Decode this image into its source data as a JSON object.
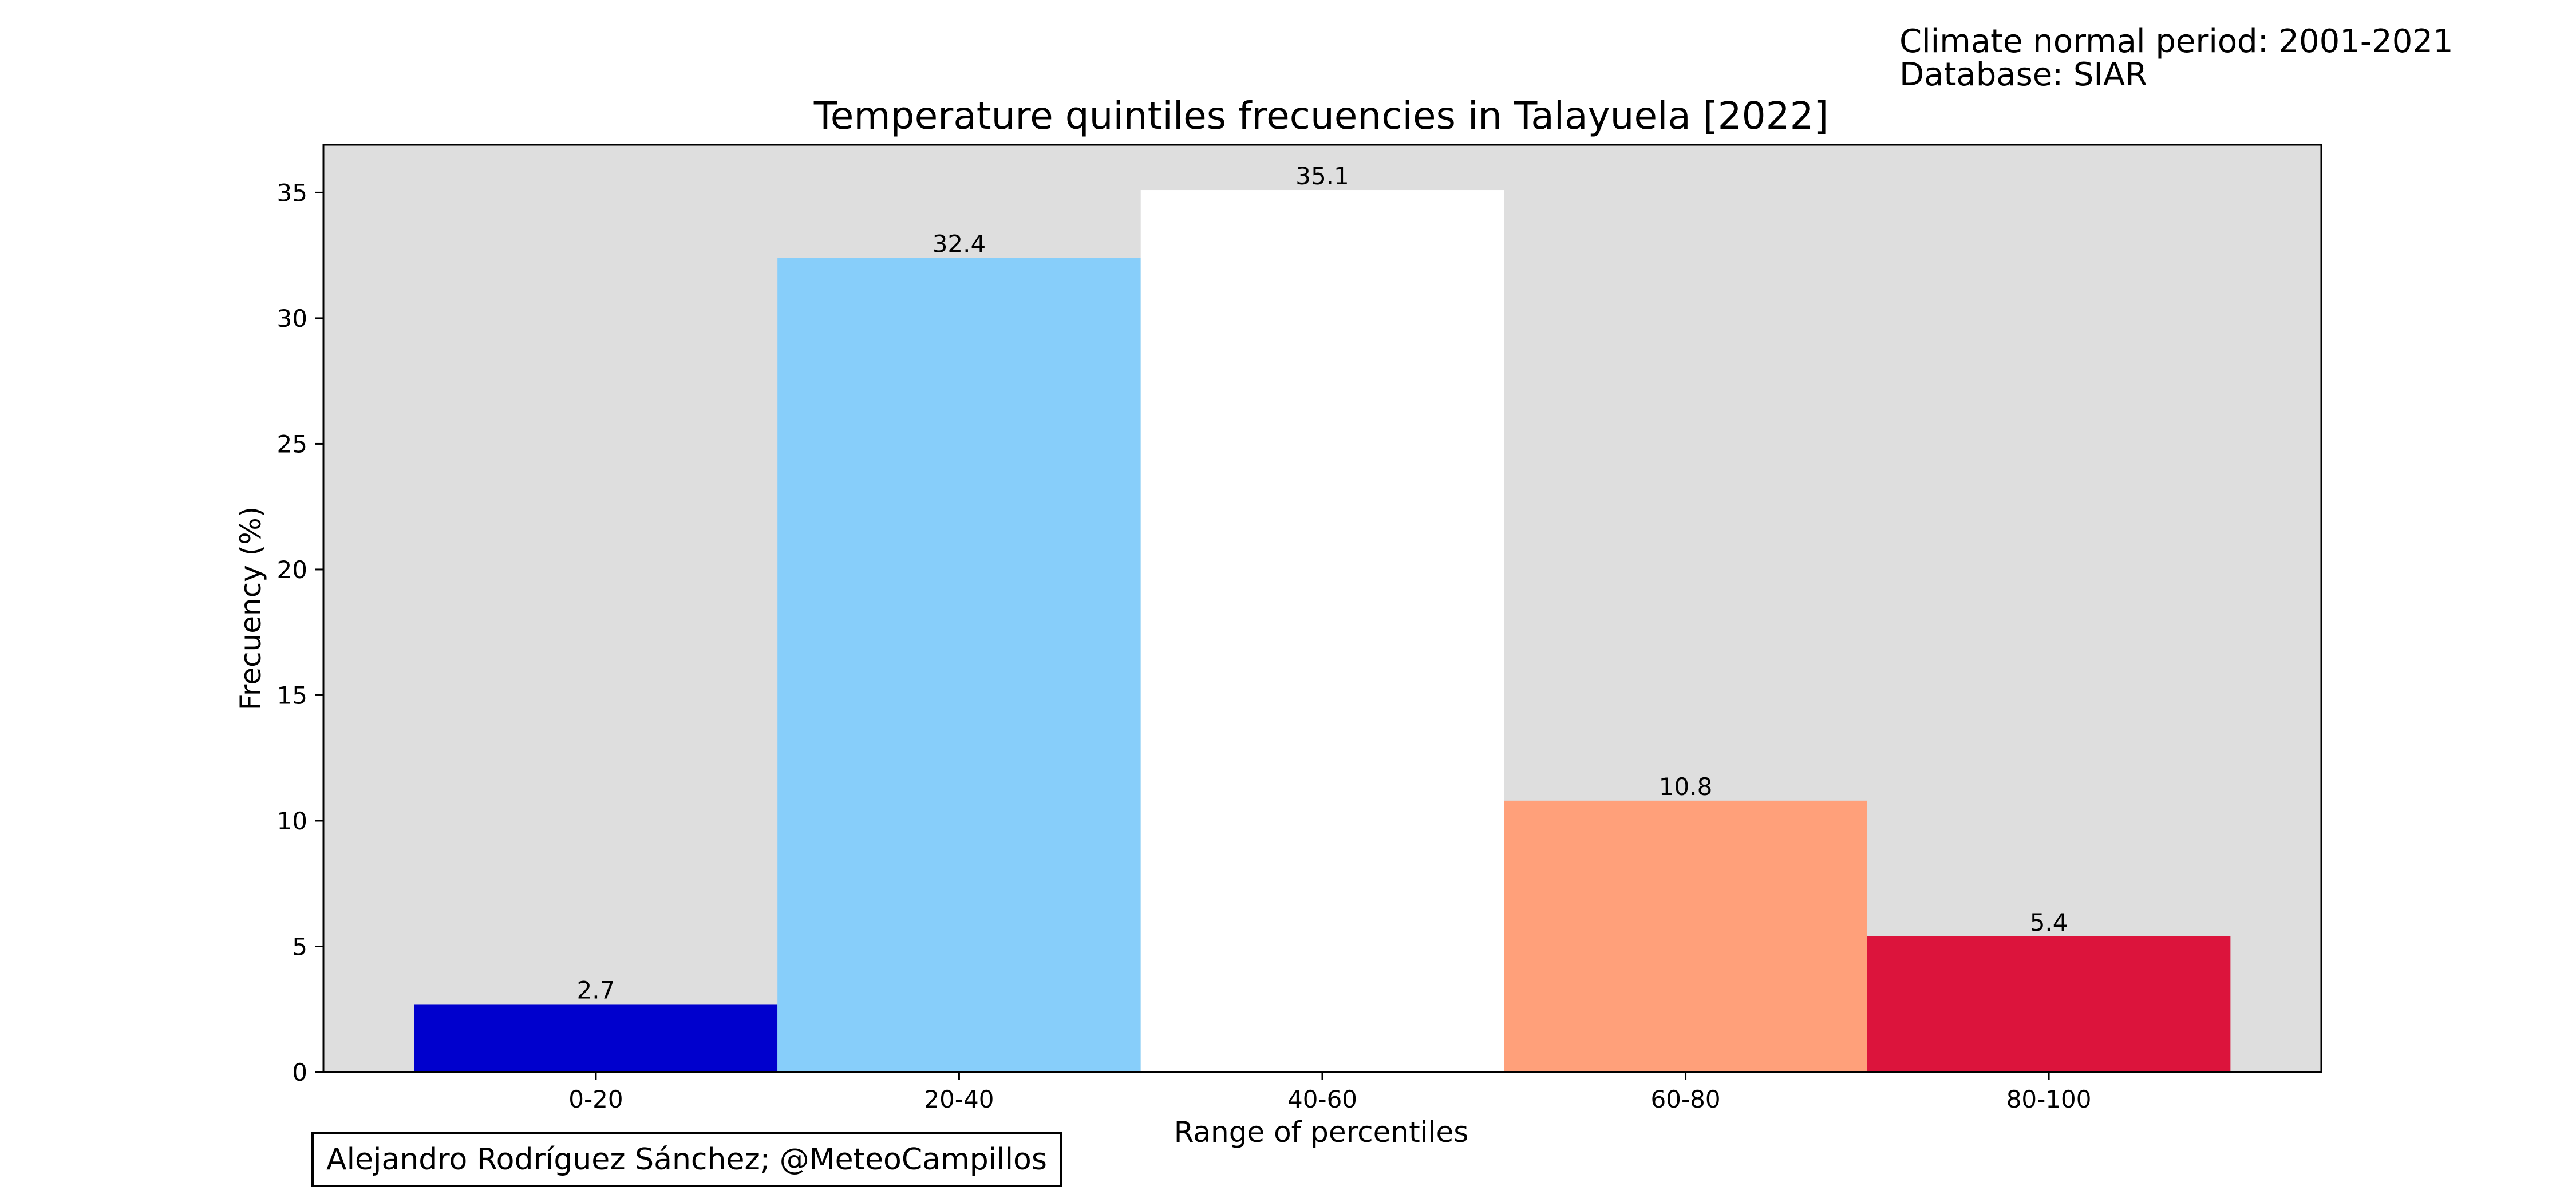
{
  "info": {
    "period_line": "Climate normal period: 2001-2021",
    "database_line": "Database: SIAR"
  },
  "credit": "Alejandro Rodríguez Sánchez; @MeteoCampillos",
  "chart_data": {
    "type": "bar",
    "title": "Temperature quintiles frecuencies in Talayuela [2022]",
    "xlabel": "Range of percentiles",
    "ylabel": "Frecuency (%)",
    "categories": [
      "0-20",
      "20-40",
      "40-60",
      "60-80",
      "80-100"
    ],
    "values": [
      2.7,
      32.4,
      35.1,
      10.8,
      5.4
    ],
    "value_labels": [
      "2.7",
      "32.4",
      "35.1",
      "10.8",
      "5.4"
    ],
    "bar_colors": [
      "#0000CD",
      "#87CEFA",
      "#FFFFFF",
      "#FFA07A",
      "#DC143C"
    ],
    "ylim": [
      0,
      36.9
    ],
    "yticks": [
      0,
      5,
      10,
      15,
      20,
      25,
      30,
      35
    ],
    "plot_background": "#DEDEDE",
    "grid": false,
    "legend": "none"
  }
}
